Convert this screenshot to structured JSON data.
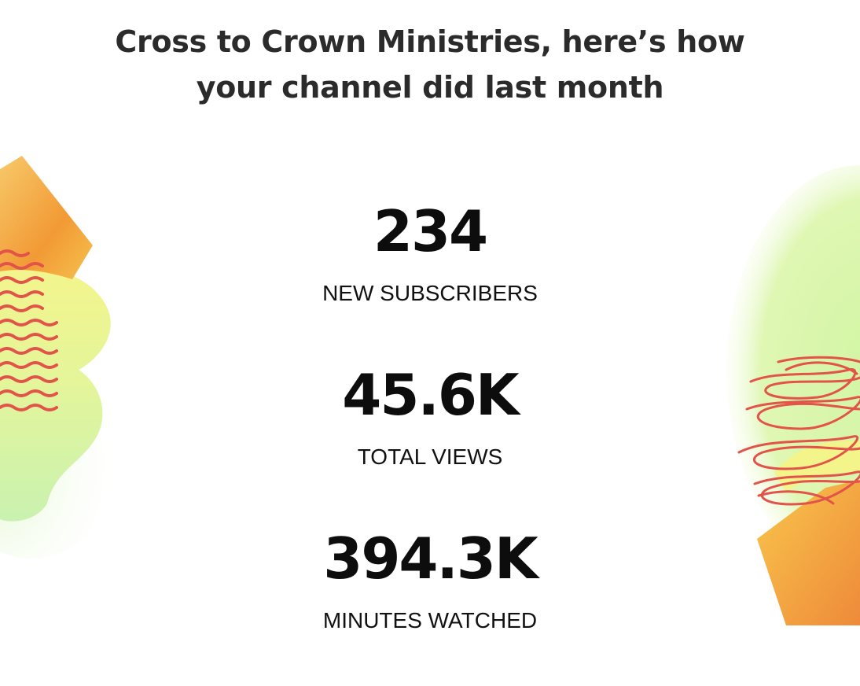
{
  "header": {
    "title": "Cross to Crown Ministries, here’s how your channel did last month"
  },
  "stats": [
    {
      "value": "234",
      "label": "NEW SUBSCRIBERS"
    },
    {
      "value": "45.6K",
      "label": "TOTAL VIEWS"
    },
    {
      "value": "394.3K",
      "label": "MINUTES WATCHED"
    }
  ],
  "decorations": {
    "left": "abstract-orange-green-shapes-with-red-waves",
    "right": "abstract-green-orange-shapes-with-red-scribble",
    "colors": {
      "orange": "#f2a23a",
      "yellow": "#f2f28a",
      "green": "#cdf3a8",
      "red": "#e2534a"
    }
  }
}
